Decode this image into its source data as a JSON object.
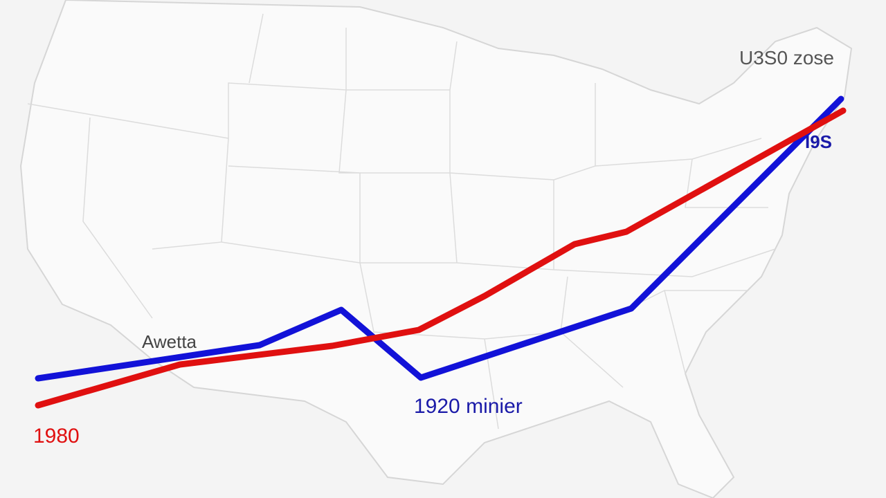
{
  "labels": {
    "top_right": "U3S0 zose",
    "blue_end": "I9S",
    "left": "Awetta",
    "blue_bottom": "1920 minier",
    "red_start": "1980"
  }
}
